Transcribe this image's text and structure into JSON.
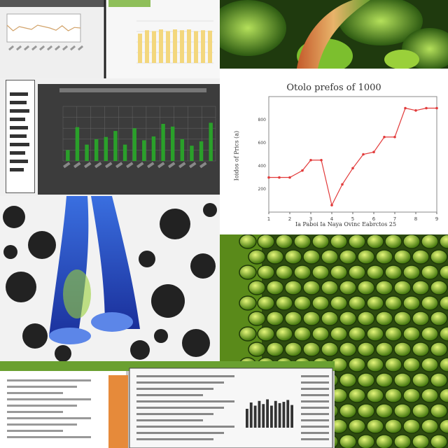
{
  "line_chart": {
    "title": "Otolo prefos of 1000",
    "xlabel": "Ia Paboi Ia Naya Ovinc Eabrctos 25",
    "ylabel": "Ioidos of Prics (a)",
    "x_ticks": [
      "1",
      "2",
      "3",
      "4",
      "5",
      "6",
      "7",
      "8",
      "9"
    ],
    "y_ticks": [
      "200",
      "400",
      "600",
      "800"
    ]
  },
  "chart_data": [
    {
      "type": "line",
      "title": "Otolo prefos of 1000",
      "xlabel": "Ia Paboi Ia Naya Ovinc Eabrctos 25",
      "ylabel": "Ioidos of Prics (a)",
      "x": [
        1,
        1.5,
        2,
        2.6,
        3,
        3.5,
        4,
        4.5,
        5,
        5.5,
        6,
        6.5,
        7,
        7.5,
        8,
        8.5,
        9
      ],
      "values": [
        300,
        300,
        300,
        360,
        450,
        450,
        60,
        240,
        380,
        500,
        520,
        650,
        650,
        900,
        880,
        900,
        900
      ],
      "xlim": [
        1,
        9
      ],
      "ylim": [
        0,
        1000
      ],
      "color": "#e23b3b",
      "grid": false
    },
    {
      "type": "bar",
      "values": [
        20,
        62,
        30,
        40,
        44,
        55,
        30,
        60,
        38,
        45,
        68,
        63,
        40,
        28,
        36,
        70
      ],
      "ylim": [
        0,
        100
      ],
      "color": "#2aa02a",
      "grid": true
    },
    {
      "type": "bar",
      "values": [
        70,
        78,
        76,
        80,
        76,
        80,
        78,
        80,
        76,
        78,
        77
      ],
      "ylim": [
        0,
        100
      ],
      "color": "#f3d77d",
      "grid": true
    },
    {
      "type": "line",
      "x": [
        0,
        1,
        2,
        3,
        4,
        5,
        6,
        7,
        8,
        9,
        10,
        11,
        12
      ],
      "values": [
        60,
        40,
        55,
        50,
        45,
        60,
        55,
        50,
        42,
        58,
        40,
        52,
        50
      ],
      "color": "#d2a36a",
      "grid": true
    },
    {
      "type": "bar",
      "values": [
        60,
        80,
        70,
        85,
        75,
        90,
        70,
        85,
        78,
        82,
        88,
        72
      ],
      "ylim": [
        0,
        100
      ],
      "color": "#333333",
      "grid": false
    }
  ]
}
